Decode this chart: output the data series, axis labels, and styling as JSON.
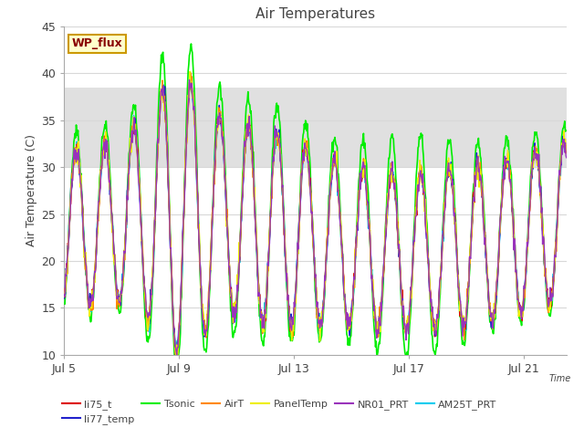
{
  "title": "Air Temperatures",
  "xlabel": "Time",
  "ylabel": "Air Temperature (C)",
  "ylim": [
    10,
    45
  ],
  "xlim_days": [
    0,
    17.5
  ],
  "xtick_days": [
    0,
    4,
    8,
    12,
    16
  ],
  "xtick_labels": [
    "Jul 5",
    "Jul 9",
    "Jul 13",
    "Jul 17",
    "Jul 21"
  ],
  "background_color": "#ffffff",
  "plot_bg_color": "#ffffff",
  "shaded_band": [
    30.0,
    38.5
  ],
  "shaded_color": "#e0e0e0",
  "grid_color": "#d8d8d8",
  "series": {
    "li75_t": {
      "color": "#dd0000",
      "lw": 1.0,
      "zorder": 5
    },
    "li77_temp": {
      "color": "#2222cc",
      "lw": 1.0,
      "zorder": 6
    },
    "Tsonic": {
      "color": "#00ee00",
      "lw": 1.2,
      "zorder": 3
    },
    "AirT": {
      "color": "#ff8800",
      "lw": 1.0,
      "zorder": 7
    },
    "PanelTemp": {
      "color": "#eeee00",
      "lw": 1.0,
      "zorder": 8
    },
    "NR01_PRT": {
      "color": "#9933bb",
      "lw": 1.0,
      "zorder": 9
    },
    "AM25T_PRT": {
      "color": "#00ccee",
      "lw": 1.2,
      "zorder": 4
    }
  },
  "legend_box": {
    "text": "WP_flux",
    "bg": "#ffffcc",
    "edge": "#cc9900",
    "text_color": "#880000"
  },
  "yticks": [
    10,
    15,
    20,
    25,
    30,
    35,
    40,
    45
  ],
  "font_color": "#444444",
  "title_fontsize": 11,
  "axis_fontsize": 9,
  "tick_fontsize": 9
}
